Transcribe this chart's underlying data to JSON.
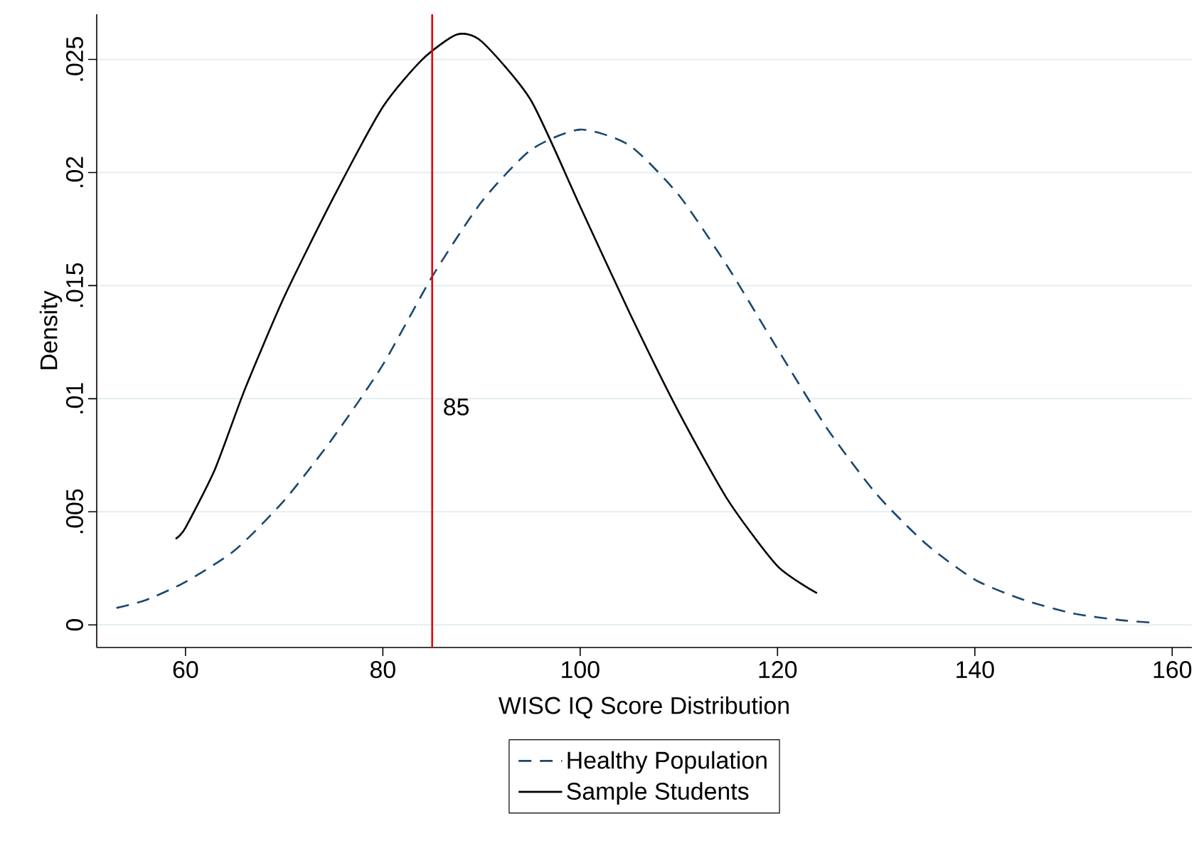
{
  "chart_data": {
    "type": "line",
    "xlabel": "WISC IQ Score Distribution",
    "ylabel": "Density",
    "xlim": [
      51,
      162
    ],
    "ylim": [
      -0.001,
      0.027
    ],
    "xticks": [
      60,
      80,
      100,
      120,
      140,
      160
    ],
    "yticks": [
      {
        "value": 0,
        "label": "0"
      },
      {
        "value": 0.005,
        "label": ".005"
      },
      {
        "value": 0.01,
        "label": ".01"
      },
      {
        "value": 0.015,
        "label": ".015"
      },
      {
        "value": 0.02,
        "label": ".02"
      },
      {
        "value": 0.025,
        "label": ".025"
      }
    ],
    "grid": "y",
    "legend": "bottom",
    "marker": "none",
    "series": [
      {
        "name": "Healthy Population",
        "color": "#1a476f",
        "line_style": "dashed",
        "x": [
          53,
          56,
          60,
          65,
          70,
          75,
          80,
          85,
          90,
          95,
          100,
          105,
          110,
          115,
          120,
          125,
          130,
          135,
          140,
          145,
          150,
          155,
          158
        ],
        "values": [
          0.00075,
          0.0011,
          0.0019,
          0.0033,
          0.0055,
          0.0083,
          0.0115,
          0.0154,
          0.0187,
          0.021,
          0.0219,
          0.0212,
          0.019,
          0.0158,
          0.0122,
          0.0087,
          0.0058,
          0.0036,
          0.002,
          0.0011,
          0.0005,
          0.0002,
          0.0001
        ]
      },
      {
        "name": "Sample Students",
        "color": "#000000",
        "line_style": "solid",
        "x": [
          59,
          60,
          63,
          66,
          70,
          75,
          80,
          84,
          87.5,
          90,
          95,
          100,
          105,
          110,
          115,
          120,
          124
        ],
        "values": [
          0.0038,
          0.0043,
          0.0069,
          0.0104,
          0.0145,
          0.0189,
          0.0229,
          0.025,
          0.0261,
          0.0258,
          0.0232,
          0.0185,
          0.0138,
          0.0094,
          0.0055,
          0.0026,
          0.0014
        ]
      }
    ],
    "ref_lines": [
      {
        "axis": "x",
        "value": 85,
        "label": "85",
        "color": "#e8000b"
      }
    ]
  }
}
